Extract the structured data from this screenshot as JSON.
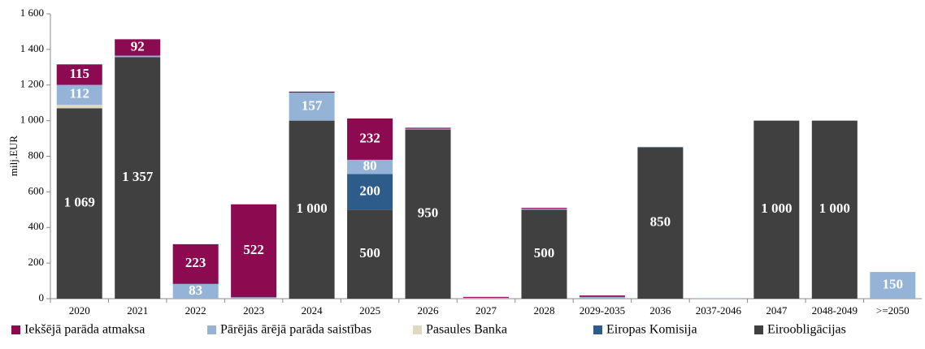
{
  "chart_data": {
    "type": "stacked_bar",
    "y_label": "milj.EUR",
    "categories": [
      "2020",
      "2021",
      "2022",
      "2023",
      "2024",
      "2025",
      "2026",
      "2027",
      "2028",
      "2029-2035",
      "2036",
      "2037-2046",
      "2047",
      "2048-2049",
      ">=2050"
    ],
    "ylim": [
      0,
      1600
    ],
    "yticks": [
      0,
      200,
      400,
      600,
      800,
      {
        "value": 1000,
        "label": "1 000"
      },
      {
        "value": 1200,
        "label": "1 200"
      },
      {
        "value": 1400,
        "label": "1 400"
      },
      {
        "value": 1600,
        "label": "1 600"
      }
    ],
    "legend_position": "bottom",
    "series": [
      {
        "name": "Eiroobligācijas",
        "color": "#404040",
        "values": [
          1069,
          1357,
          0,
          0,
          1000,
          500,
          950,
          0,
          500,
          0,
          850,
          0,
          1000,
          1000,
          0
        ],
        "value_labels": [
          "1 069",
          "1 357",
          null,
          null,
          "1 000",
          "500",
          "950",
          null,
          "500",
          null,
          "850",
          null,
          "1 000",
          "1 000",
          null
        ]
      },
      {
        "name": "Eiropas Komisija",
        "color": "#2e5c8a",
        "values": [
          0,
          0,
          0,
          0,
          0,
          200,
          0,
          0,
          0,
          0,
          0,
          0,
          0,
          0,
          0
        ],
        "value_labels": [
          null,
          null,
          null,
          null,
          null,
          "200",
          null,
          null,
          null,
          null,
          null,
          null,
          null,
          null,
          null
        ]
      },
      {
        "name": "Pasaules Banka",
        "color": "#ddd9c3",
        "values": [
          20,
          0,
          0,
          0,
          0,
          0,
          0,
          0,
          0,
          0,
          0,
          0,
          0,
          0,
          0
        ]
      },
      {
        "name": "Pārējās ārējā parāda saistības",
        "color": "#95b3d7",
        "values": [
          112,
          8,
          83,
          8,
          157,
          80,
          5,
          5,
          5,
          10,
          3,
          3,
          0,
          0,
          150
        ],
        "value_labels": [
          "112",
          null,
          "83",
          null,
          "157",
          "80",
          null,
          null,
          null,
          null,
          null,
          null,
          null,
          null,
          "150"
        ]
      },
      {
        "name": "Iekšējā parāda atmaksa",
        "color": "#8b0a50",
        "values": [
          115,
          92,
          223,
          522,
          6,
          232,
          5,
          5,
          5,
          8,
          0,
          0,
          0,
          0,
          0
        ],
        "value_labels": [
          "115",
          "92",
          "223",
          "522",
          null,
          "232",
          null,
          null,
          null,
          null,
          null,
          null,
          null,
          null,
          null
        ]
      }
    ],
    "legend_order": [
      4,
      3,
      2,
      1,
      0
    ]
  }
}
